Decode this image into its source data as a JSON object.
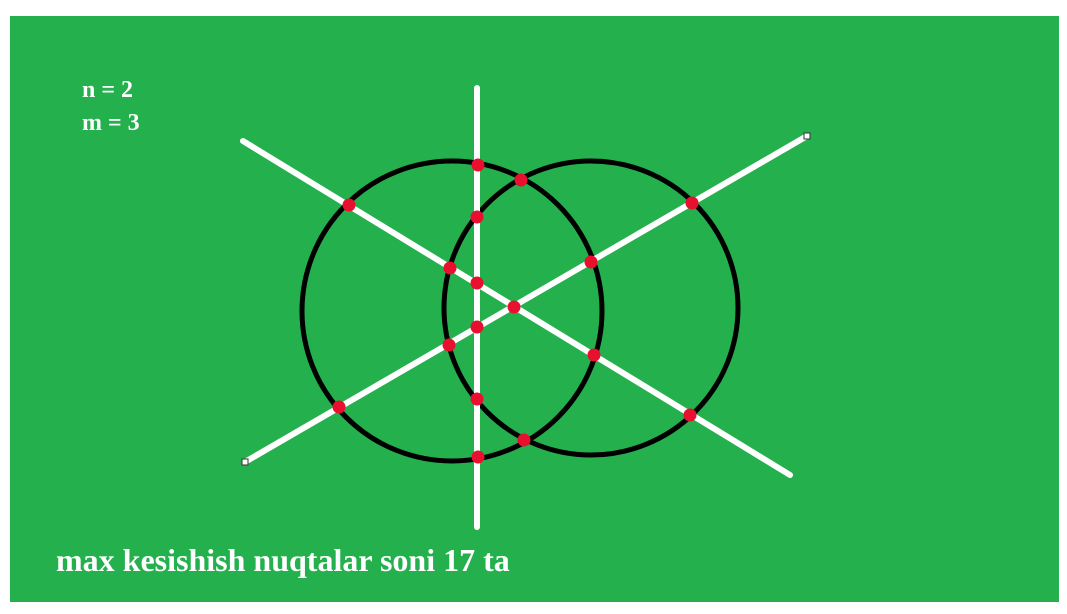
{
  "params": {
    "n_label": "n = 2",
    "m_label": "m = 3"
  },
  "caption": "max kesishish nuqtalar soni 17 ta",
  "diagram": {
    "circle_count": 2,
    "line_count": 3,
    "intersection_count": 17
  },
  "colors": {
    "background": "#24b04d",
    "circles": "#000000",
    "lines": "#ffffff",
    "intersection_points": "#e8102e",
    "text": "#ffffff"
  }
}
